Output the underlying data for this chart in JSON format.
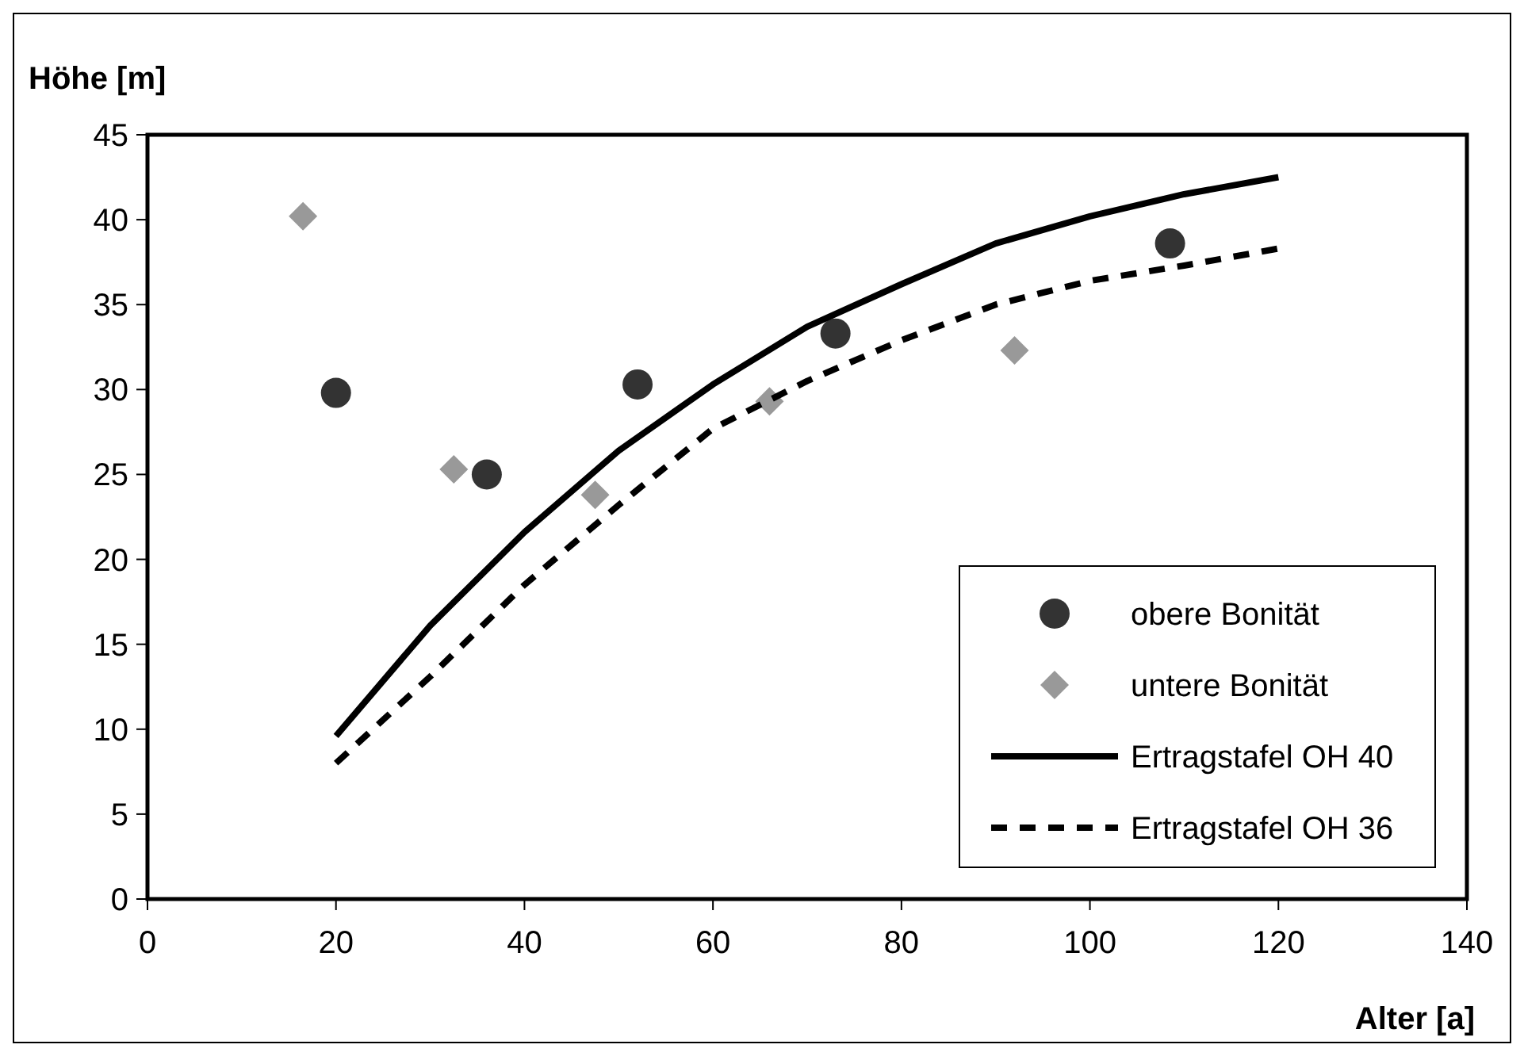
{
  "chart_data": {
    "type": "scatter",
    "xlabel": "Alter [a]",
    "ylabel": "Höhe [m]",
    "xlim": [
      0,
      140
    ],
    "ylim": [
      0,
      45
    ],
    "xticks": [
      0,
      20,
      40,
      60,
      80,
      100,
      120,
      140
    ],
    "yticks": [
      0,
      5,
      10,
      15,
      20,
      25,
      30,
      35,
      40,
      45
    ],
    "grid": false,
    "legend": "bottom right",
    "series": [
      {
        "name": "obere Bonität",
        "marker": "circle",
        "color": "#333333",
        "x": [
          20,
          36,
          52,
          73,
          108.5
        ],
        "values": [
          29.8,
          25,
          30.3,
          33.3,
          38.6
        ]
      },
      {
        "name": "untere Bonität",
        "marker": "diamond",
        "color": "#999999",
        "x": [
          16.5,
          32.5,
          47.5,
          66,
          92
        ],
        "values": [
          40.2,
          25.3,
          23.8,
          29.3,
          32.3
        ]
      },
      {
        "name": "Ertragstafel OH 40",
        "type": "line",
        "line_style": "solid",
        "color": "#000000",
        "x": [
          20,
          30,
          40,
          50,
          60,
          70,
          80,
          90,
          100,
          110,
          120
        ],
        "values": [
          9.6,
          16.1,
          21.6,
          26.4,
          30.3,
          33.7,
          36.2,
          38.6,
          40.2,
          41.5,
          42.5
        ]
      },
      {
        "name": "Ertragstafel OH 36",
        "type": "line",
        "line_style": "dashed",
        "color": "#000000",
        "x": [
          20,
          30,
          40,
          50,
          60,
          70,
          80,
          90,
          100,
          110,
          120
        ],
        "values": [
          8,
          13.1,
          18.5,
          23.2,
          27.7,
          30.5,
          32.9,
          35,
          36.4,
          37.3,
          38.3
        ]
      }
    ]
  }
}
